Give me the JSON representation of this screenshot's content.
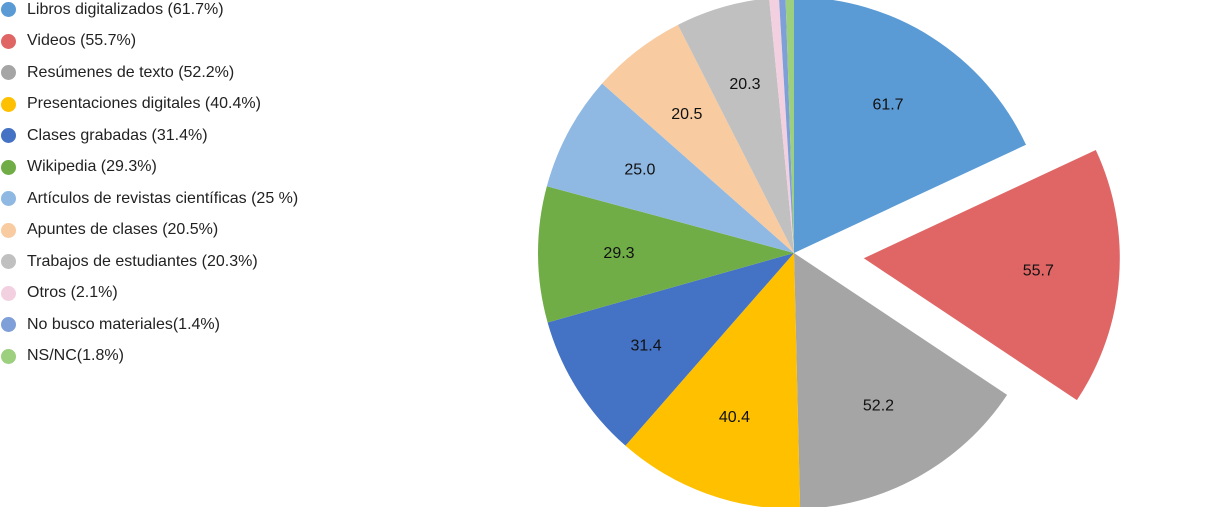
{
  "chart_data": {
    "type": "pie",
    "exploded": [
      "Videos"
    ],
    "legend_position": "left",
    "slices": [
      {
        "legend": "Libros digitalizados (61.7%)",
        "label": "61.7",
        "value": 61.7,
        "color": "#5b9bd5"
      },
      {
        "legend": "Videos (55.7%)",
        "label": "55.7",
        "value": 55.7,
        "color": "#e06666"
      },
      {
        "legend": "Resúmenes de texto (52.2%)",
        "label": "52.2",
        "value": 52.2,
        "color": "#a5a5a5"
      },
      {
        "legend": "Presentaciones digitales (40.4%)",
        "label": "40.4",
        "value": 40.4,
        "color": "#ffc000"
      },
      {
        "legend": "Clases grabadas (31.4%)",
        "label": "31.4",
        "value": 31.4,
        "color": "#4472c4"
      },
      {
        "legend": "Wikipedia (29.3%)",
        "label": "29.3",
        "value": 29.3,
        "color": "#70ad47"
      },
      {
        "legend": "Artículos de revistas científicas (25 %)",
        "label": "25.0",
        "value": 25.0,
        "color": "#8fb9e3"
      },
      {
        "legend": "Apuntes de clases (20.5%)",
        "label": "20.5",
        "value": 20.5,
        "color": "#f8cba0"
      },
      {
        "legend": "Trabajos de estudiantes (20.3%)",
        "label": "20.3",
        "value": 20.3,
        "color": "#c0c0c0"
      },
      {
        "legend": "Otros (2.1%)",
        "label": "",
        "value": 2.1,
        "color": "#f2d0e0"
      },
      {
        "legend": "No busco materiales(1.4%)",
        "label": "",
        "value": 1.4,
        "color": "#7f9fd8"
      },
      {
        "legend": "NS/NC(1.8%)",
        "label": "",
        "value": 1.8,
        "color": "#9ccf7e"
      }
    ]
  }
}
